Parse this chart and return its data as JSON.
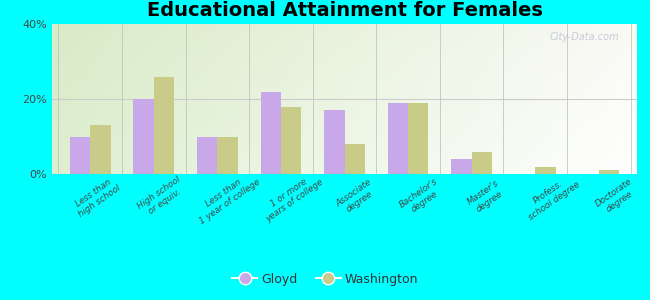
{
  "title": "Educational Attainment for Females",
  "categories": [
    "Less than\nhigh school",
    "High school\nor equiv.",
    "Less than\n1 year of college",
    "1 or more\nyears of college",
    "Associate\ndegree",
    "Bachelor's\ndegree",
    "Master's\ndegree",
    "Profess.\nschool degree",
    "Doctorate\ndegree"
  ],
  "gloyd_values": [
    10,
    20,
    10,
    22,
    17,
    19,
    4,
    0,
    0
  ],
  "washington_values": [
    13,
    26,
    10,
    18,
    8,
    19,
    6,
    2,
    1
  ],
  "gloyd_color": "#c8a8e8",
  "washington_color": "#c8cc88",
  "background_color_top": "#d8e8c0",
  "background_color_bottom": "#f4f8ee",
  "ylim": [
    0,
    40
  ],
  "yticks": [
    0,
    20,
    40
  ],
  "ytick_labels": [
    "0%",
    "20%",
    "40%"
  ],
  "outer_bg": "#00ffff",
  "title_fontsize": 14,
  "legend_labels": [
    "Gloyd",
    "Washington"
  ],
  "watermark": "City-Data.com",
  "grid_color": "#dddddd"
}
